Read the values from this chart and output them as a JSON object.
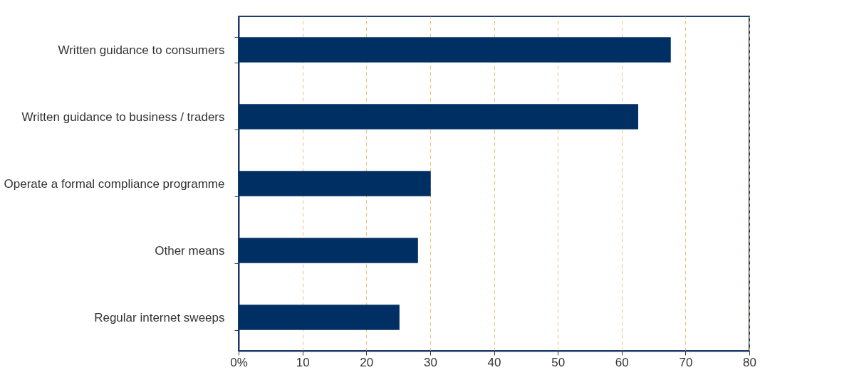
{
  "chart_data": {
    "type": "bar",
    "orientation": "horizontal",
    "categories": [
      "Written guidance to consumers",
      "Written guidance to business / traders",
      "Operate a formal compliance programme",
      "Other means",
      "Regular internet sweeps"
    ],
    "values": [
      67.7,
      62.6,
      30.1,
      28.1,
      25.2
    ],
    "color": "#003063",
    "xlim": [
      0,
      80
    ],
    "xticks": [
      {
        "value": 0,
        "label": "0%"
      },
      10,
      20,
      30,
      40,
      50,
      60,
      70,
      80
    ],
    "grid": "x"
  }
}
